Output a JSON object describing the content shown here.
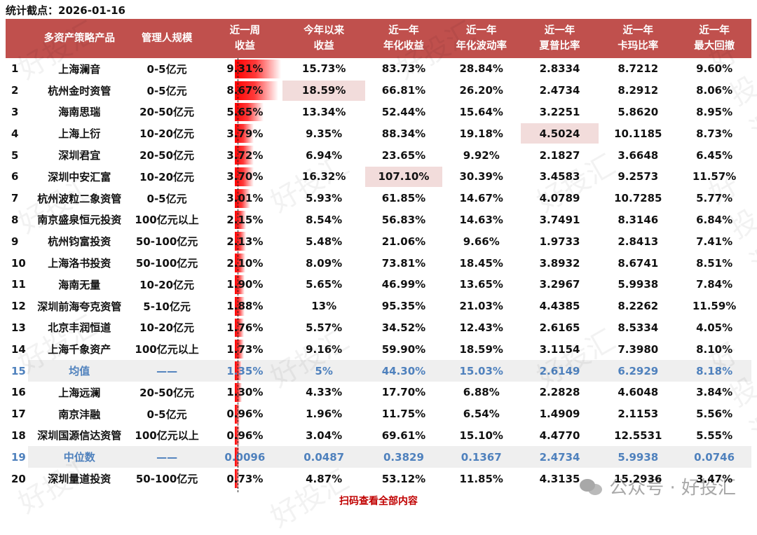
{
  "stamp": "统计截点：2026-01-16",
  "headers": [
    {
      "l1": "",
      "l2": ""
    },
    {
      "l1": "多资产策略产品",
      "l2": ""
    },
    {
      "l1": "管理人规模",
      "l2": ""
    },
    {
      "l1": "近一周",
      "l2": "收益"
    },
    {
      "l1": "今年以来",
      "l2": "收益"
    },
    {
      "l1": "近一年",
      "l2": "年化收益"
    },
    {
      "l1": "近一年",
      "l2": "年化波动率"
    },
    {
      "l1": "近一年",
      "l2": "夏普比率"
    },
    {
      "l1": "近一年",
      "l2": "卡玛比率"
    },
    {
      "l1": "近一年",
      "l2": "最大回撤"
    }
  ],
  "rows": [
    {
      "no": "1",
      "name": "上海澜音",
      "scale": "0-5亿元",
      "week": "9.31%",
      "bar": 9.31,
      "ytd": "15.73%",
      "ann": "83.73%",
      "vol": "28.84%",
      "sharpe": "2.8334",
      "calmar": "8.7212",
      "mdd": "9.60%"
    },
    {
      "no": "2",
      "name": "杭州金时资管",
      "scale": "0-5亿元",
      "week": "8.67%",
      "bar": 8.67,
      "ytd": "18.59%",
      "ann": "66.81%",
      "vol": "26.20%",
      "sharpe": "2.4734",
      "calmar": "8.2912",
      "mdd": "8.06%",
      "hl": "ytd"
    },
    {
      "no": "3",
      "name": "海南思瑞",
      "scale": "20-50亿元",
      "week": "5.65%",
      "bar": 5.65,
      "ytd": "13.34%",
      "ann": "52.44%",
      "vol": "15.64%",
      "sharpe": "3.2251",
      "calmar": "5.8620",
      "mdd": "8.95%"
    },
    {
      "no": "4",
      "name": "上海上衍",
      "scale": "10-20亿元",
      "week": "3.79%",
      "bar": 3.79,
      "ytd": "9.35%",
      "ann": "88.34%",
      "vol": "19.18%",
      "sharpe": "4.5024",
      "calmar": "10.1185",
      "mdd": "8.73%",
      "hl": "sharpe"
    },
    {
      "no": "5",
      "name": "深圳君宜",
      "scale": "20-50亿元",
      "week": "3.72%",
      "bar": 3.72,
      "ytd": "6.94%",
      "ann": "23.65%",
      "vol": "9.92%",
      "sharpe": "2.1827",
      "calmar": "3.6648",
      "mdd": "6.45%"
    },
    {
      "no": "6",
      "name": "深圳中安汇富",
      "scale": "10-20亿元",
      "week": "3.70%",
      "bar": 3.7,
      "ytd": "16.32%",
      "ann": "107.10%",
      "vol": "30.39%",
      "sharpe": "3.4583",
      "calmar": "9.2573",
      "mdd": "11.57%",
      "hl": "ann"
    },
    {
      "no": "7",
      "name": "杭州波粒二象资管",
      "scale": "0-5亿元",
      "week": "3.01%",
      "bar": 3.01,
      "ytd": "5.93%",
      "ann": "61.85%",
      "vol": "14.67%",
      "sharpe": "4.0789",
      "calmar": "10.7285",
      "mdd": "5.77%"
    },
    {
      "no": "8",
      "name": "南京盛泉恒元投资",
      "scale": "100亿元以上",
      "week": "2.15%",
      "bar": 2.15,
      "ytd": "8.54%",
      "ann": "56.83%",
      "vol": "14.63%",
      "sharpe": "3.7491",
      "calmar": "8.3146",
      "mdd": "6.84%"
    },
    {
      "no": "9",
      "name": "杭州钧富投资",
      "scale": "50-100亿元",
      "week": "2.13%",
      "bar": 2.13,
      "ytd": "5.48%",
      "ann": "21.06%",
      "vol": "9.66%",
      "sharpe": "1.9733",
      "calmar": "2.8413",
      "mdd": "7.41%"
    },
    {
      "no": "10",
      "name": "上海洛书投资",
      "scale": "50-100亿元",
      "week": "2.10%",
      "bar": 2.1,
      "ytd": "8.09%",
      "ann": "73.81%",
      "vol": "18.45%",
      "sharpe": "3.8932",
      "calmar": "8.6741",
      "mdd": "8.51%"
    },
    {
      "no": "11",
      "name": "海南无量",
      "scale": "10-20亿元",
      "week": "1.90%",
      "bar": 1.9,
      "ytd": "5.65%",
      "ann": "46.99%",
      "vol": "13.65%",
      "sharpe": "3.2967",
      "calmar": "5.9938",
      "mdd": "7.84%"
    },
    {
      "no": "12",
      "name": "深圳前海夸克资管",
      "scale": "5-10亿元",
      "week": "1.88%",
      "bar": 1.88,
      "ytd": "13%",
      "ann": "95.35%",
      "vol": "21.03%",
      "sharpe": "4.4385",
      "calmar": "8.2262",
      "mdd": "11.59%"
    },
    {
      "no": "13",
      "name": "北京丰润恒道",
      "scale": "10-20亿元",
      "week": "1.76%",
      "bar": 1.76,
      "ytd": "5.57%",
      "ann": "34.52%",
      "vol": "12.43%",
      "sharpe": "2.6165",
      "calmar": "8.5334",
      "mdd": "4.05%"
    },
    {
      "no": "14",
      "name": "上海千象资产",
      "scale": "100亿元以上",
      "week": "1.73%",
      "bar": 1.73,
      "ytd": "9.16%",
      "ann": "59.90%",
      "vol": "18.59%",
      "sharpe": "3.1154",
      "calmar": "7.3980",
      "mdd": "8.10%"
    },
    {
      "no": "15",
      "name": "均值",
      "scale": "——",
      "week": "1.35%",
      "bar": 1.35,
      "ytd": "5%",
      "ann": "44.30%",
      "vol": "15.03%",
      "sharpe": "2.6149",
      "calmar": "6.2929",
      "mdd": "8.18%",
      "stat": true
    },
    {
      "no": "16",
      "name": "上海远澜",
      "scale": "20-50亿元",
      "week": "1.30%",
      "bar": 1.3,
      "ytd": "4.33%",
      "ann": "17.70%",
      "vol": "6.88%",
      "sharpe": "2.2828",
      "calmar": "4.6048",
      "mdd": "3.84%"
    },
    {
      "no": "17",
      "name": "南京沣融",
      "scale": "0-5亿元",
      "week": "0.96%",
      "bar": 0.96,
      "ytd": "1.96%",
      "ann": "11.75%",
      "vol": "6.54%",
      "sharpe": "1.4909",
      "calmar": "2.1153",
      "mdd": "5.56%"
    },
    {
      "no": "18",
      "name": "深圳国源信达资管",
      "scale": "100亿元以上",
      "week": "0.96%",
      "bar": 0.96,
      "ytd": "3.04%",
      "ann": "69.61%",
      "vol": "15.10%",
      "sharpe": "4.4770",
      "calmar": "12.5531",
      "mdd": "5.55%"
    },
    {
      "no": "19",
      "name": "中位数",
      "scale": "——",
      "week": "0.0096",
      "bar": 0.96,
      "ytd": "0.0487",
      "ann": "0.3829",
      "vol": "0.1367",
      "sharpe": "2.4734",
      "calmar": "5.9938",
      "mdd": "0.0746",
      "stat": true
    },
    {
      "no": "20",
      "name": "深圳量道投资",
      "scale": "50-100亿元",
      "week": "0.73%",
      "bar": 0.73,
      "ytd": "4.87%",
      "ann": "53.12%",
      "vol": "11.85%",
      "sharpe": "4.3135",
      "calmar": "15.2936",
      "mdd": "3.47%"
    }
  ],
  "footer": "扫码查看全部内容",
  "watermark": "公众号 · 好投汇",
  "watermark_ghost": "好投汇",
  "colors": {
    "header_bg": "#c0504d",
    "stat_text": "#4f81bd",
    "highlight": "#f2dcdb",
    "bar": "#ff0000",
    "footer": "#c00000"
  }
}
